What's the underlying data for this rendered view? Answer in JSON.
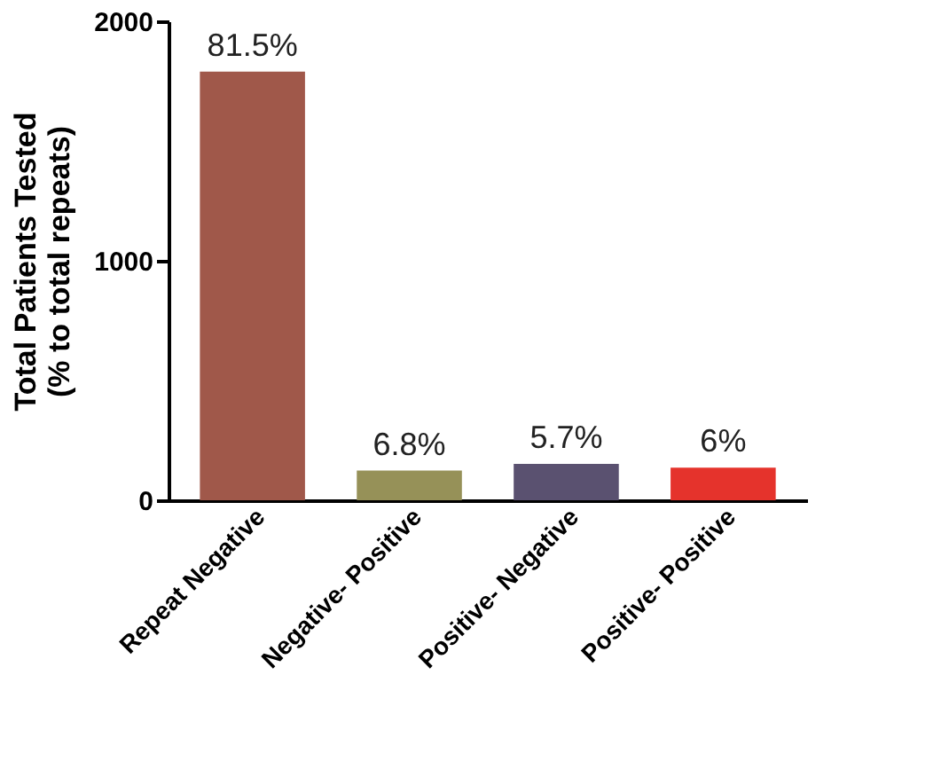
{
  "chart_data": {
    "type": "bar",
    "ylabel": "Total Patients Tested\n(% to total repeats)",
    "categories": [
      "Repeat Negative",
      "Negative- Positive",
      "Positive- Negative",
      "Positive- Positive"
    ],
    "values": [
      1790,
      124,
      152,
      136
    ],
    "colors": [
      "#a0584a",
      "#969158",
      "#5a5170",
      "#e5332c"
    ],
    "annotations": [
      {
        "text": "81.5%",
        "x": "Repeat Negative",
        "y": 1790
      },
      {
        "text": "6.8%",
        "x": "Negative- Positive",
        "y": 124
      },
      {
        "text": "5.7%",
        "x": "Positive- Negative",
        "y": 152
      },
      {
        "text": "6%",
        "x": "Positive- Positive",
        "y": 136
      }
    ],
    "ylim": [
      0,
      2000
    ],
    "yticks": [
      0,
      1000,
      2000
    ],
    "grid": false
  }
}
